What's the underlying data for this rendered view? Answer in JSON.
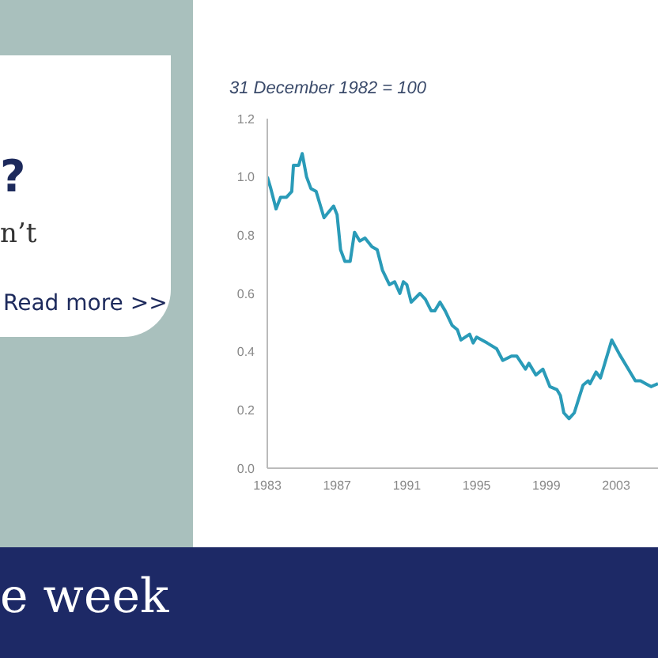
{
  "chart_data": {
    "type": "line",
    "subtitle": "31 December 1982 = 100",
    "x": [
      1983,
      1983.2,
      1983.5,
      1983.76,
      1984.1,
      1984.4,
      1984.5,
      1984.8,
      1985,
      1985.25,
      1985.5,
      1985.8,
      1986.25,
      1986.8,
      1987,
      1987.2,
      1987.45,
      1987.75,
      1988,
      1988.3,
      1988.6,
      1989,
      1989.3,
      1989.6,
      1990,
      1990.3,
      1990.6,
      1990.8,
      1991,
      1991.25,
      1991.75,
      1992.06,
      1992.4,
      1992.6,
      1992.9,
      1993.2,
      1993.6,
      1993.9,
      1994.1,
      1994.6,
      1994.8,
      1995,
      1995.6,
      1996.15,
      1996.5,
      1997,
      1997.3,
      1997.8,
      1998,
      1998.4,
      1998.8,
      1999.2,
      1999.6,
      1999.8,
      2000,
      2000.3,
      2000.6,
      2001.1,
      2001.4,
      2001.5,
      2001.85,
      2002.1,
      2002.75,
      2003.2,
      2003.7,
      2004.1,
      2004.4,
      2004.7,
      2005,
      2005.4
    ],
    "series": [
      {
        "color": "#2a9bb8",
        "values": [
          1.0,
          0.96,
          0.89,
          0.93,
          0.93,
          0.95,
          1.04,
          1.04,
          1.08,
          1.0,
          0.96,
          0.95,
          0.86,
          0.9,
          0.87,
          0.75,
          0.71,
          0.71,
          0.81,
          0.78,
          0.79,
          0.76,
          0.75,
          0.68,
          0.63,
          0.64,
          0.6,
          0.64,
          0.63,
          0.57,
          0.6,
          0.58,
          0.54,
          0.54,
          0.57,
          0.54,
          0.49,
          0.475,
          0.44,
          0.46,
          0.43,
          0.45,
          0.43,
          0.41,
          0.37,
          0.385,
          0.385,
          0.34,
          0.36,
          0.32,
          0.34,
          0.28,
          0.27,
          0.25,
          0.19,
          0.17,
          0.19,
          0.285,
          0.3,
          0.29,
          0.33,
          0.31,
          0.44,
          0.39,
          0.34,
          0.3,
          0.3,
          0.29,
          0.28,
          0.29
        ]
      }
    ],
    "xlim": [
      1983,
      2005.4
    ],
    "xticks": [
      1983,
      1987,
      1991,
      1995,
      1999,
      2003
    ],
    "ylim": [
      0,
      1.2
    ],
    "yticks": [
      {
        "value": 0,
        "label": "0.0"
      },
      {
        "value": 0.2,
        "label": "0.2"
      },
      {
        "value": 0.4,
        "label": "0.4"
      },
      {
        "value": 0.6,
        "label": "0.6"
      },
      {
        "value": 0.8,
        "label": "0.8"
      },
      {
        "value": 1,
        "label": "1.0"
      },
      {
        "value": 1.2,
        "label": "1.2"
      }
    ],
    "grid": false,
    "legend": false,
    "marker": "none",
    "line_style": "solid",
    "annotations": [
      "?",
      "n’t",
      "Read more >>",
      "e week"
    ]
  }
}
